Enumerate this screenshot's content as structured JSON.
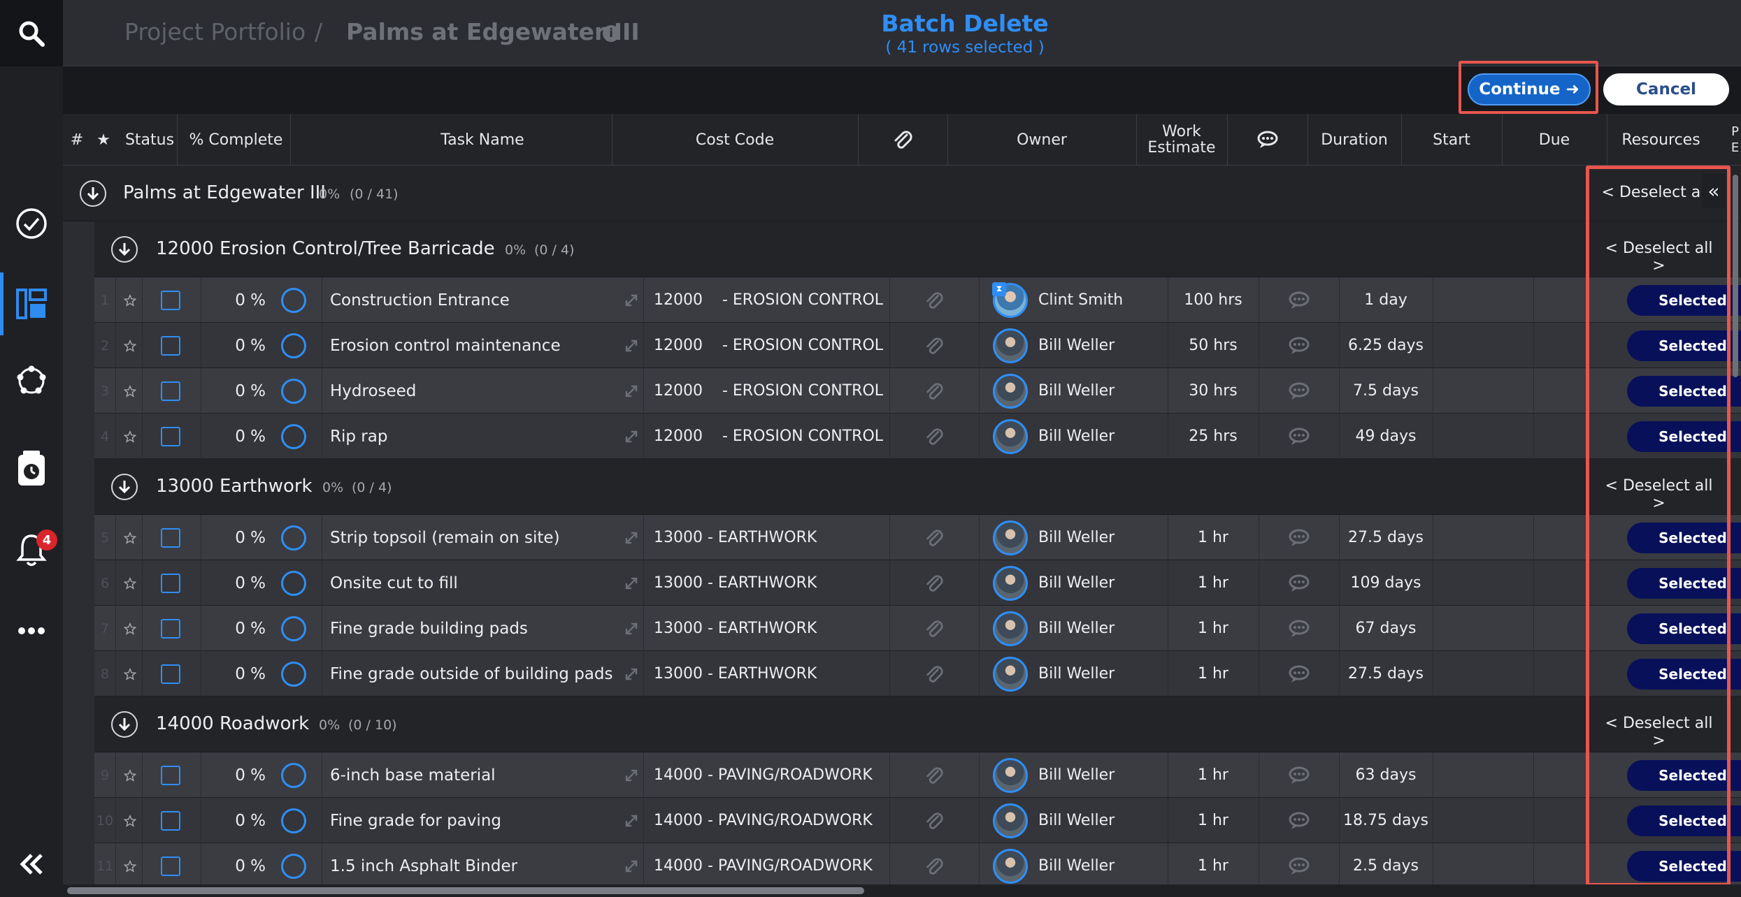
{
  "sidebar": {
    "icons": [
      "search-icon",
      "tasks-check-icon",
      "board-layout-icon",
      "network-icon",
      "timesheet-icon",
      "bell-icon",
      "more-icon",
      "collapse-sidebar-icon"
    ],
    "notification_count": "4"
  },
  "header": {
    "breadcrumb_root": "Project Portfolio",
    "breadcrumb_separator": "/",
    "project_name": "Palms at Edgewater III",
    "info_icon": "i",
    "batch_title": "Batch Delete",
    "batch_subtitle": "( 41 rows selected )"
  },
  "actions": {
    "continue_label": "Continue ➜",
    "cancel_label": "Cancel"
  },
  "columns": {
    "num": "#",
    "star": "★",
    "status": "Status",
    "pct": "% Complete",
    "task": "Task Name",
    "cost": "Cost Code",
    "attach_icon": "paperclip-icon",
    "owner": "Owner",
    "work_estimate": "Work Estimate",
    "comment_icon": "comment-icon",
    "duration": "Duration",
    "start": "Start",
    "due": "Due",
    "resources": "Resources",
    "cut_off": "P E"
  },
  "project": {
    "name": "Palms at Edgewater III",
    "pct": "0%",
    "count": "(0 / 41)",
    "deselect": "< Deselect all",
    "collapse": "«"
  },
  "groups": [
    {
      "name": "12000 Erosion Control/Tree Barricade",
      "pct": "0%",
      "count": "(0 / 4)",
      "deselect": "< Deselect all >",
      "rows": [
        {
          "num": "1",
          "pct": "0 %",
          "task": "Construction Entrance",
          "cost": "12000    - EROSION CONTROL",
          "owner": "Clint Smith",
          "work": "100 hrs",
          "duration": "1 day",
          "resource": "Selected"
        },
        {
          "num": "2",
          "pct": "0 %",
          "task": "Erosion control maintenance",
          "cost": "12000    - EROSION CONTROL",
          "owner": "Bill Weller",
          "work": "50 hrs",
          "duration": "6.25 days",
          "resource": "Selected"
        },
        {
          "num": "3",
          "pct": "0 %",
          "task": "Hydroseed",
          "cost": "12000    - EROSION CONTROL",
          "owner": "Bill Weller",
          "work": "30 hrs",
          "duration": "7.5 days",
          "resource": "Selected"
        },
        {
          "num": "4",
          "pct": "0 %",
          "task": "Rip rap",
          "cost": "12000    - EROSION CONTROL",
          "owner": "Bill Weller",
          "work": "25 hrs",
          "duration": "49 days",
          "resource": "Selected"
        }
      ]
    },
    {
      "name": "13000 Earthwork",
      "pct": "0%",
      "count": "(0 / 4)",
      "deselect": "< Deselect all >",
      "rows": [
        {
          "num": "5",
          "pct": "0 %",
          "task": "Strip topsoil (remain on site)",
          "cost": "13000 - EARTHWORK",
          "owner": "Bill Weller",
          "work": "1 hr",
          "duration": "27.5 days",
          "resource": "Selected"
        },
        {
          "num": "6",
          "pct": "0 %",
          "task": "Onsite cut to fill",
          "cost": "13000 - EARTHWORK",
          "owner": "Bill Weller",
          "work": "1 hr",
          "duration": "109 days",
          "resource": "Selected"
        },
        {
          "num": "7",
          "pct": "0 %",
          "task": "Fine grade building pads",
          "cost": "13000 - EARTHWORK",
          "owner": "Bill Weller",
          "work": "1 hr",
          "duration": "67 days",
          "resource": "Selected"
        },
        {
          "num": "8",
          "pct": "0 %",
          "task": "Fine grade outside of building pads",
          "cost": "13000 - EARTHWORK",
          "owner": "Bill Weller",
          "work": "1 hr",
          "duration": "27.5 days",
          "resource": "Selected"
        }
      ]
    },
    {
      "name": "14000 Roadwork",
      "pct": "0%",
      "count": "(0 / 10)",
      "deselect": "< Deselect all >",
      "rows": [
        {
          "num": "9",
          "pct": "0 %",
          "task": "6-inch base material",
          "cost": "14000 - PAVING/ROADWORK",
          "owner": "Bill Weller",
          "work": "1 hr",
          "duration": "63 days",
          "resource": "Selected"
        },
        {
          "num": "10",
          "pct": "0 %",
          "task": "Fine grade for paving",
          "cost": "14000 - PAVING/ROADWORK",
          "owner": "Bill Weller",
          "work": "1 hr",
          "duration": "18.75 days",
          "resource": "Selected"
        },
        {
          "num": "11",
          "pct": "0 %",
          "task": "1.5 inch Asphalt Binder",
          "cost": "14000 - PAVING/ROADWORK",
          "owner": "Bill Weller",
          "work": "1 hr",
          "duration": "2.5 days",
          "resource": "Selected"
        }
      ]
    }
  ],
  "colors": {
    "accent": "#2f8ef5",
    "selected_button": "#08105a",
    "highlight_frame": "#e9564e",
    "badge": "#d9252b"
  }
}
